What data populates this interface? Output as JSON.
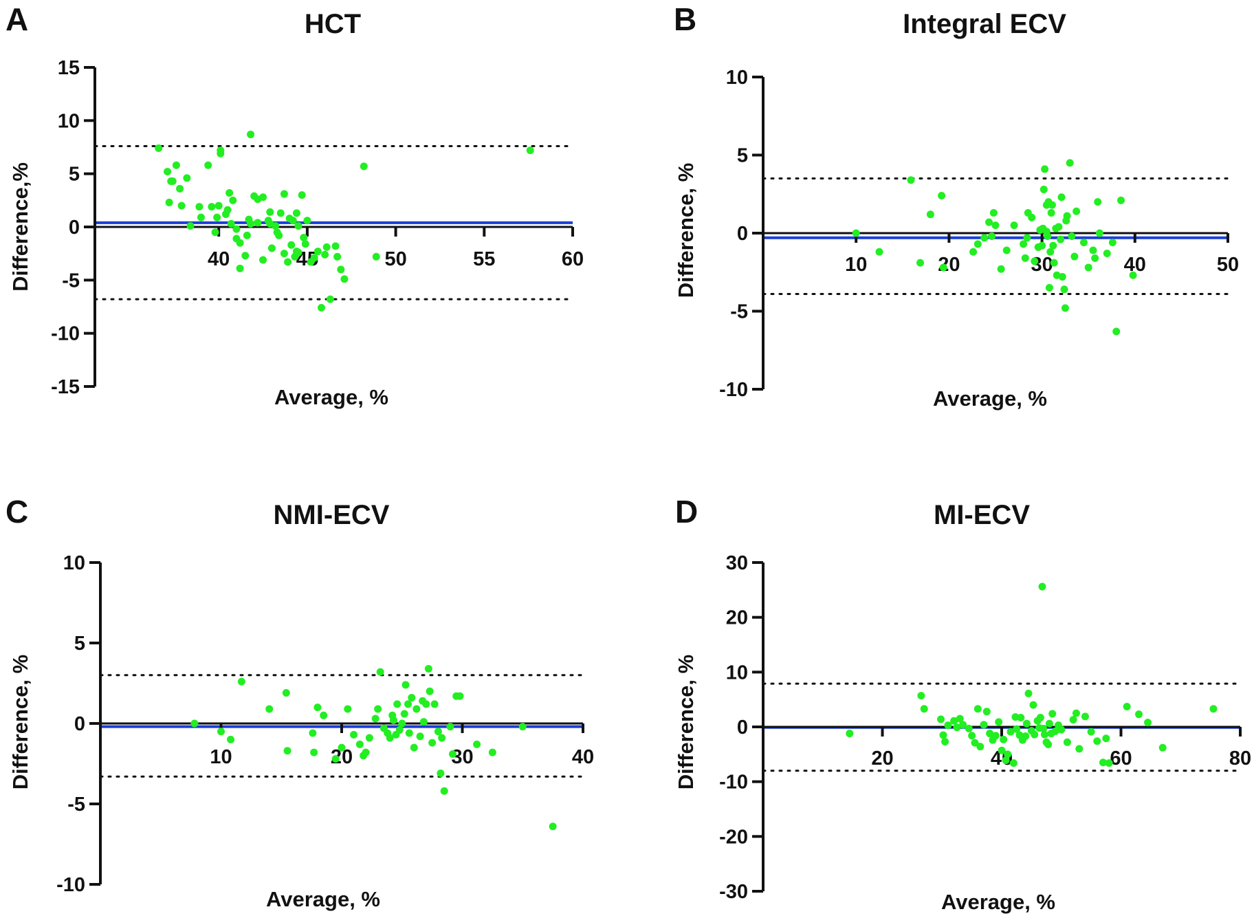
{
  "chart_data": [
    {
      "type": "scatter",
      "panel": "A",
      "title": "HCT",
      "xlabel": "Average, %",
      "ylabel": "Difference,%",
      "xlim": [
        33,
        60
      ],
      "ylim": [
        -15,
        15
      ],
      "xticks": [
        40,
        45,
        50,
        55,
        60
      ],
      "yticks": [
        15,
        10,
        5,
        0,
        -5,
        -10,
        -15
      ],
      "mean_diff": 0.4,
      "upper_loa": 7.6,
      "lower_loa": -6.8,
      "point_color": "#22ee22",
      "x": [
        36.6,
        37.1,
        37.2,
        37.3,
        37.4,
        37.6,
        37.8,
        37.9,
        38.2,
        38.4,
        38.9,
        39.0,
        39.4,
        39.6,
        39.8,
        39.9,
        40.0,
        40.1,
        40.1,
        40.4,
        40.5,
        40.6,
        40.7,
        40.8,
        41.0,
        41.0,
        41.2,
        41.2,
        41.5,
        41.6,
        41.7,
        41.8,
        41.8,
        42.0,
        42.2,
        42.2,
        42.5,
        42.5,
        42.8,
        42.9,
        42.9,
        43.0,
        43.2,
        43.3,
        43.4,
        43.5,
        43.7,
        43.7,
        43.9,
        44.0,
        44.1,
        44.2,
        44.3,
        44.4,
        44.4,
        44.5,
        44.5,
        44.7,
        44.8,
        44.9,
        45.0,
        45.2,
        45.4,
        45.6,
        45.8,
        46.0,
        46.1,
        46.3,
        46.6,
        46.7,
        46.9,
        47.1,
        48.2,
        48.9,
        57.6
      ],
      "y": [
        7.4,
        5.2,
        2.3,
        4.3,
        4.3,
        5.8,
        3.6,
        2.0,
        4.6,
        0.1,
        1.9,
        0.9,
        5.8,
        1.9,
        -0.5,
        0.9,
        2.0,
        6.9,
        7.2,
        1.2,
        1.6,
        3.2,
        0.3,
        2.5,
        -0.2,
        -1.1,
        -1.5,
        -3.9,
        -2.7,
        -0.8,
        0.7,
        8.7,
        0.3,
        2.9,
        2.6,
        0.4,
        2.8,
        -3.1,
        0.6,
        0.3,
        1.4,
        -2.0,
        0.1,
        -0.5,
        -0.8,
        1.3,
        -2.5,
        3.1,
        -3.3,
        0.8,
        -1.7,
        0.6,
        -2.8,
        -2.3,
        1.3,
        0.1,
        -2.4,
        3.0,
        -1.0,
        -1.6,
        0.6,
        -3.3,
        -2.9,
        -2.3,
        -7.6,
        -2.6,
        -1.9,
        -6.8,
        -1.8,
        -2.8,
        -4.0,
        -4.9,
        5.7,
        -2.8,
        7.2
      ]
    },
    {
      "type": "scatter",
      "panel": "B",
      "title": "Integral ECV",
      "xlabel": "Average, %",
      "ylabel": "Difference, %",
      "xlim": [
        0,
        50
      ],
      "ylim": [
        -10,
        10
      ],
      "xticks": [
        10,
        20,
        30,
        40,
        50
      ],
      "yticks": [
        10,
        5,
        0,
        -5,
        -10
      ],
      "mean_diff": -0.3,
      "upper_loa": 3.5,
      "lower_loa": -3.9,
      "point_color": "#22ee22",
      "x": [
        10.0,
        12.5,
        15.9,
        16.9,
        18.0,
        19.2,
        19.4,
        22.6,
        23.1,
        23.8,
        24.3,
        24.6,
        24.8,
        25.0,
        25.6,
        26.2,
        27.0,
        28.0,
        28.2,
        28.4,
        28.5,
        28.9,
        29.2,
        29.6,
        29.8,
        30.0,
        30.1,
        30.2,
        30.3,
        30.5,
        30.5,
        30.6,
        30.7,
        30.8,
        30.9,
        31.0,
        31.1,
        31.2,
        31.3,
        31.5,
        31.6,
        31.8,
        32.0,
        32.1,
        32.2,
        32.4,
        32.5,
        32.6,
        32.7,
        33.0,
        33.2,
        33.5,
        33.7,
        34.5,
        35.0,
        35.5,
        35.7,
        36.0,
        36.2,
        37.0,
        37.6,
        38.0,
        38.5,
        39.8
      ],
      "y": [
        0.0,
        -1.2,
        3.4,
        -1.9,
        1.2,
        2.4,
        -2.2,
        -1.2,
        -0.7,
        -0.3,
        0.7,
        -0.2,
        1.3,
        0.5,
        -2.3,
        -1.1,
        0.5,
        -0.7,
        -1.6,
        -0.3,
        1.3,
        1.0,
        -1.8,
        -0.9,
        0.2,
        -0.8,
        0.3,
        2.8,
        4.1,
        1.8,
        0.1,
        -0.2,
        2.0,
        -3.5,
        -1.2,
        1.3,
        1.8,
        -0.8,
        -1.9,
        0.3,
        -2.7,
        0.4,
        -0.4,
        2.3,
        -2.8,
        -3.6,
        -4.8,
        0.8,
        1.1,
        4.5,
        -0.2,
        -1.5,
        1.4,
        -0.6,
        -2.2,
        -1.1,
        -1.6,
        2.0,
        0.0,
        -1.3,
        -0.6,
        -6.3,
        2.1,
        -2.7
      ]
    },
    {
      "type": "scatter",
      "panel": "C",
      "title": "NMI-ECV",
      "xlabel": "Average, %",
      "ylabel": "Difference, %",
      "xlim": [
        0,
        40
      ],
      "ylim": [
        -10,
        10
      ],
      "xticks": [
        10,
        20,
        30,
        40
      ],
      "yticks": [
        10,
        5,
        0,
        -5,
        -10
      ],
      "mean_diff": -0.2,
      "upper_loa": 3.0,
      "lower_loa": -3.3,
      "point_color": "#22ee22",
      "x": [
        7.8,
        10.0,
        10.8,
        11.7,
        14.0,
        15.4,
        15.5,
        17.6,
        17.7,
        18.0,
        18.5,
        19.5,
        20.0,
        20.5,
        21.0,
        21.5,
        21.8,
        22.0,
        22.3,
        22.8,
        23.0,
        23.2,
        23.5,
        23.8,
        24.0,
        24.2,
        24.3,
        24.5,
        24.6,
        24.8,
        25.0,
        25.2,
        25.3,
        25.5,
        25.6,
        25.8,
        26.0,
        26.2,
        26.5,
        26.7,
        26.8,
        27.0,
        27.2,
        27.3,
        27.5,
        27.7,
        28.0,
        28.2,
        28.3,
        28.5,
        29.0,
        29.2,
        29.5,
        29.8,
        31.2,
        32.5,
        35.0,
        37.5
      ],
      "y": [
        0.0,
        -0.5,
        -1.0,
        2.6,
        0.9,
        1.9,
        -1.7,
        -0.6,
        -1.8,
        1.0,
        0.5,
        -2.2,
        -1.5,
        0.9,
        -0.7,
        -1.3,
        -2.0,
        -1.8,
        -0.9,
        0.3,
        0.9,
        3.2,
        -0.3,
        -0.6,
        -0.9,
        0.5,
        0.2,
        -0.7,
        1.2,
        -0.4,
        0.0,
        0.6,
        2.4,
        1.2,
        -0.6,
        1.6,
        -1.5,
        0.9,
        -0.8,
        1.4,
        0.1,
        1.2,
        3.4,
        2.0,
        -1.2,
        1.2,
        -0.5,
        -3.1,
        -0.9,
        -4.2,
        -0.2,
        -1.9,
        1.7,
        1.7,
        -1.3,
        -1.8,
        -0.2,
        -6.4
      ]
    },
    {
      "type": "scatter",
      "panel": "D",
      "title": "MI-ECV",
      "xlabel": "Average, %",
      "ylabel": "Difference, %",
      "xlim": [
        0,
        80
      ],
      "ylim": [
        -30,
        30
      ],
      "xticks": [
        20,
        40,
        60,
        80
      ],
      "yticks": [
        30,
        20,
        10,
        0,
        -10,
        -20,
        -30
      ],
      "mean_diff": -0.1,
      "upper_loa": 7.9,
      "lower_loa": -8.0,
      "point_color": "#22ee22",
      "x": [
        14.5,
        26.5,
        27.0,
        29.8,
        30.2,
        30.5,
        31.0,
        32.0,
        32.5,
        33.0,
        33.5,
        34.5,
        35.0,
        35.5,
        36.0,
        36.4,
        37.0,
        37.5,
        38.0,
        38.5,
        39.0,
        39.5,
        40.0,
        40.3,
        40.7,
        41.0,
        41.5,
        42.0,
        42.3,
        42.5,
        43.0,
        43.2,
        43.5,
        44.0,
        44.2,
        44.5,
        45.0,
        45.3,
        45.5,
        46.0,
        46.3,
        46.5,
        46.8,
        47.0,
        47.2,
        47.5,
        47.8,
        48.0,
        48.3,
        48.5,
        49.0,
        49.5,
        50.0,
        51.0,
        52.0,
        52.5,
        53.0,
        54.0,
        55.0,
        56.0,
        57.0,
        57.5,
        58.0,
        61.0,
        63.0,
        64.5,
        67.0,
        75.5
      ],
      "y": [
        -1.2,
        5.7,
        3.3,
        1.4,
        -1.5,
        -2.7,
        0.3,
        1.1,
        -0.1,
        1.5,
        0.4,
        -0.3,
        -1.6,
        -2.9,
        3.3,
        -3.6,
        0.4,
        2.8,
        -1.2,
        -2.4,
        -1.6,
        0.9,
        -4.3,
        -2.3,
        -6.1,
        -5.0,
        -0.9,
        -6.6,
        1.8,
        -0.4,
        -1.5,
        1.7,
        -2.4,
        -1.7,
        0.6,
        6.1,
        -0.7,
        4.0,
        -1.4,
        1.1,
        -0.2,
        1.7,
        25.6,
        -0.3,
        -1.4,
        -2.8,
        -3.2,
        0.6,
        -1.2,
        2.4,
        -0.8,
        0.3,
        -0.5,
        -2.8,
        1.3,
        2.5,
        -4.0,
        1.9,
        -0.9,
        -2.6,
        -6.5,
        -2.1,
        -6.6,
        3.7,
        2.3,
        0.8,
        -3.8,
        3.3
      ]
    }
  ],
  "colors": {
    "mean_line": "#1a3fd9",
    "zero_line": "#111111",
    "limits_line": "#111111",
    "axis": "#111111"
  }
}
